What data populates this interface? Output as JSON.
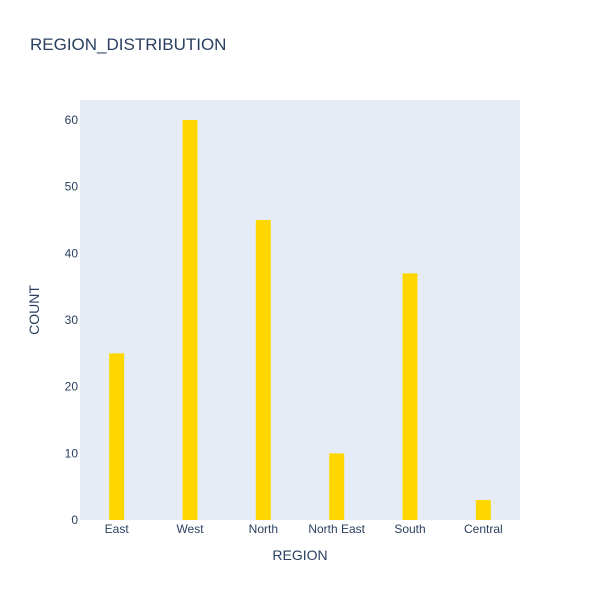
{
  "chart_data": {
    "type": "bar",
    "title": "REGION_DISTRIBUTION",
    "xlabel": "REGION",
    "ylabel": "COUNT",
    "categories": [
      "East",
      "West",
      "North",
      "North East",
      "South",
      "Central"
    ],
    "values": [
      25,
      60,
      45,
      10,
      37,
      3
    ],
    "ylim": [
      0,
      63
    ],
    "yticks": [
      0,
      10,
      20,
      30,
      40,
      50,
      60
    ],
    "grid": false,
    "legend": "none",
    "colors": {
      "bar": "#ffd700",
      "plot_background": "#e5ecf6",
      "text": "#2a3f5f"
    }
  }
}
